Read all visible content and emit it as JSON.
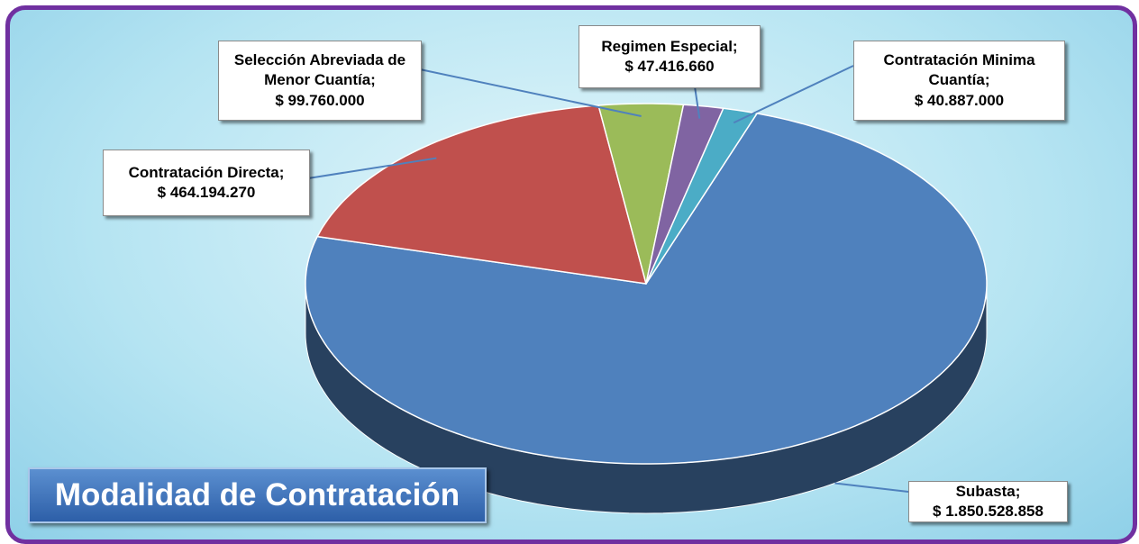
{
  "chart_data": {
    "type": "pie3d",
    "title": "Modalidad de Contratación",
    "categories": [
      "Subasta;",
      "Contratación Directa;",
      "Selección Abreviada de Menor Cuantía;",
      "Regimen Especial;",
      "Contratación Minima Cuantía;"
    ],
    "values": [
      1850528858,
      464194270,
      99760000,
      47416660,
      40887000
    ],
    "value_labels": [
      "$ 1.850.528.858",
      "$ 464.194.270",
      "$ 99.760.000",
      "$ 47.416.660",
      "$ 40.887.000"
    ],
    "colors": [
      "#4f81bd",
      "#c0504d",
      "#9bbb59",
      "#8064a2",
      "#4bacc6"
    ]
  }
}
